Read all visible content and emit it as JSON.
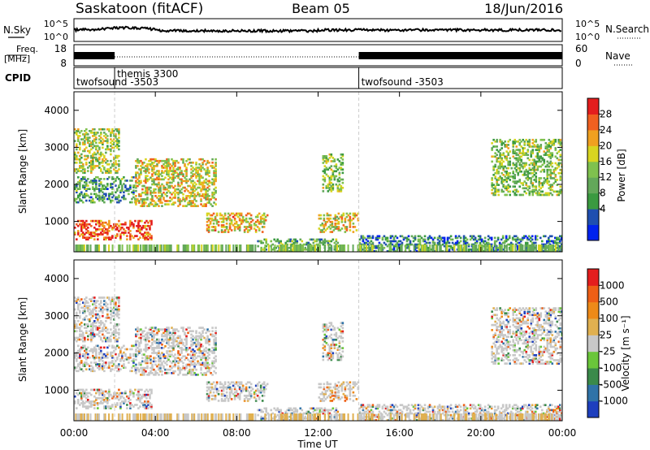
{
  "header": {
    "site": "Saskatoon (fitACF)",
    "beam": "Beam 05",
    "date": "18/Jun/2016"
  },
  "noise_panel": {
    "left_label": "N.Sky",
    "right_label": "N.Search",
    "left_ticks": [
      "10^5",
      "10^0"
    ],
    "right_ticks": [
      "10^5",
      "10^0"
    ]
  },
  "freq_panel": {
    "left_label_top": "Freq.",
    "left_label_bottom": "[MHz]",
    "right_label": "Nave",
    "left_ticks": [
      "18",
      "8"
    ],
    "right_ticks": [
      "60",
      "0"
    ]
  },
  "cpid_panel": {
    "label": "CPID",
    "segments": [
      {
        "name": "twofsound -3503",
        "start_hour": 0.0
      },
      {
        "name": "themis 3300",
        "start_hour": 2.0
      },
      {
        "name": "twofsound -3503",
        "start_hour": 14.0
      }
    ]
  },
  "x_axis": {
    "label": "Time UT",
    "ticks": [
      "00:00",
      "04:00",
      "08:00",
      "12:00",
      "16:00",
      "20:00",
      "00:00"
    ],
    "range_hours": [
      0,
      24
    ]
  },
  "power_panel": {
    "ylabel": "Slant Range [km]",
    "yticks": [
      "4000",
      "3000",
      "2000",
      "1000"
    ],
    "cbar_label": "Power [dB]",
    "cbar_ticks": [
      "28",
      "24",
      "20",
      "16",
      "12",
      "8",
      "4"
    ],
    "cbar_colors": [
      "#0022ee",
      "#1f4fb0",
      "#3a9a40",
      "#63a85a",
      "#7fc14e",
      "#d8d520",
      "#f0a020",
      "#f06020",
      "#e41e1e"
    ]
  },
  "velocity_panel": {
    "ylabel": "Slant Range [km]",
    "yticks": [
      "4000",
      "3000",
      "2000",
      "1000"
    ],
    "cbar_label": "Velocity [m s⁻¹]",
    "cbar_ticks": [
      "1000",
      "500",
      "100",
      "25",
      "-25",
      "-100",
      "-500",
      "-1000"
    ],
    "cbar_colors": [
      "#1e3fbe",
      "#2f73a8",
      "#3a8a4a",
      "#6ac63a",
      "#c8c8c8",
      "#e0b050",
      "#ee8a18",
      "#ee5f16",
      "#e41e1e"
    ]
  },
  "chart_data": {
    "type": "heatmap",
    "title": "Saskatoon (fitACF) Beam 05 18/Jun/2016",
    "xlabel": "Time UT",
    "ylabel": "Slant Range [km]",
    "xlim": [
      "00:00",
      "00:00"
    ],
    "ylim": [
      180,
      4500
    ],
    "panels": [
      {
        "name": "Power",
        "units": "dB",
        "colorbar_range": [
          0,
          30
        ]
      },
      {
        "name": "Velocity",
        "units": "m s⁻¹",
        "colorbar_range": [
          -1000,
          1000
        ]
      }
    ],
    "scatter_regions": [
      {
        "time_hours": [
          0.0,
          2.2
        ],
        "range_km": [
          2300,
          3500
        ],
        "power_db": 16
      },
      {
        "time_hours": [
          0.0,
          3.0
        ],
        "range_km": [
          1500,
          2200
        ],
        "power_db": 10
      },
      {
        "time_hours": [
          0.0,
          3.8
        ],
        "range_km": [
          500,
          1000
        ],
        "power_db": 26
      },
      {
        "time_hours": [
          3.0,
          7.0
        ],
        "range_km": [
          1400,
          2700
        ],
        "power_db": 18
      },
      {
        "time_hours": [
          6.5,
          9.5
        ],
        "range_km": [
          700,
          1200
        ],
        "power_db": 20
      },
      {
        "time_hours": [
          9.0,
          13.0
        ],
        "range_km": [
          180,
          500
        ],
        "power_db": 12
      },
      {
        "time_hours": [
          12.0,
          14.0
        ],
        "range_km": [
          700,
          1200
        ],
        "power_db": 18
      },
      {
        "time_hours": [
          12.2,
          13.2
        ],
        "range_km": [
          1800,
          2800
        ],
        "power_db": 14
      },
      {
        "time_hours": [
          14.0,
          24.0
        ],
        "range_km": [
          180,
          600
        ],
        "power_db": 8
      },
      {
        "time_hours": [
          20.5,
          24.0
        ],
        "range_km": [
          1700,
          3200
        ],
        "power_db": 14
      }
    ]
  }
}
